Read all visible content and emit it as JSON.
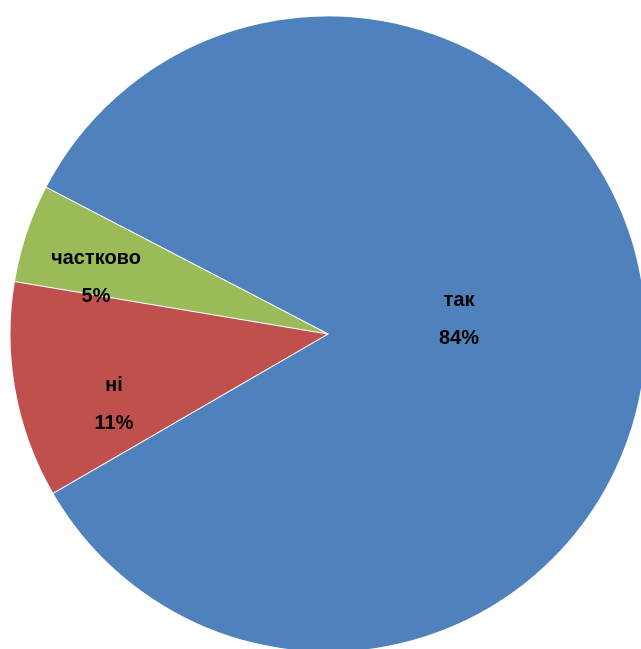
{
  "chart_data": {
    "type": "pie",
    "slices": [
      {
        "label": "так",
        "value": 84,
        "value_label": "84%",
        "color": "#4f81bd"
      },
      {
        "label": "ні",
        "value": 11,
        "value_label": "11%",
        "color": "#c0504d"
      },
      {
        "label": "частково",
        "value": 5,
        "value_label": "5%",
        "color": "#9bbb59"
      }
    ],
    "title": "",
    "legend": "none"
  }
}
